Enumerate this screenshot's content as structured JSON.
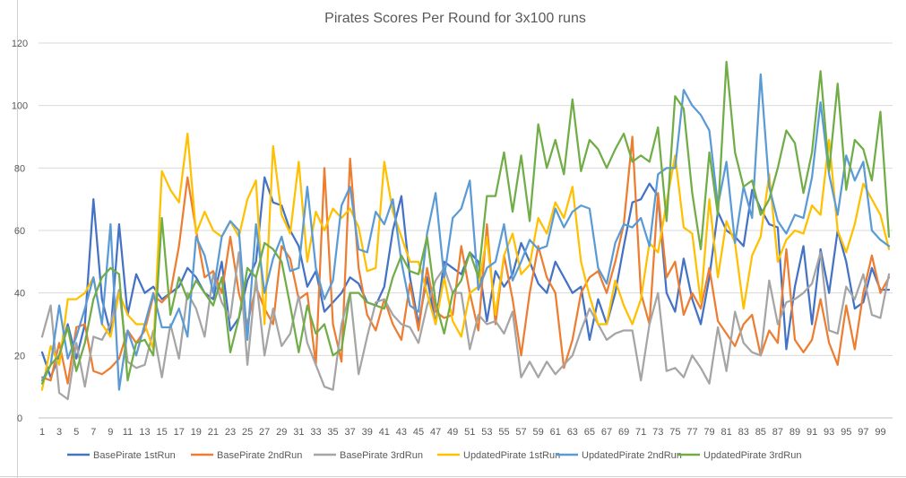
{
  "chart_data": {
    "type": "line",
    "title": "Pirates Scores Per Round for 3x100 runs",
    "xlabel": "",
    "ylabel": "",
    "ylim": [
      0,
      120
    ],
    "yticks": [
      0,
      20,
      40,
      60,
      80,
      100,
      120
    ],
    "x": [
      1,
      2,
      3,
      4,
      5,
      6,
      7,
      8,
      9,
      10,
      11,
      12,
      13,
      14,
      15,
      16,
      17,
      18,
      19,
      20,
      21,
      22,
      23,
      24,
      25,
      26,
      27,
      28,
      29,
      30,
      31,
      32,
      33,
      34,
      35,
      36,
      37,
      38,
      39,
      40,
      41,
      42,
      43,
      44,
      45,
      46,
      47,
      48,
      49,
      50,
      51,
      52,
      53,
      54,
      55,
      56,
      57,
      58,
      59,
      60,
      61,
      62,
      63,
      64,
      65,
      66,
      67,
      68,
      69,
      70,
      71,
      72,
      73,
      74,
      75,
      76,
      77,
      78,
      79,
      80,
      81,
      82,
      83,
      84,
      85,
      86,
      87,
      88,
      89,
      90,
      91,
      92,
      93,
      94,
      95,
      96,
      97,
      98,
      99,
      100
    ],
    "xtick_labels": [
      1,
      3,
      5,
      7,
      9,
      11,
      13,
      15,
      17,
      19,
      21,
      23,
      25,
      27,
      29,
      31,
      33,
      35,
      37,
      39,
      41,
      43,
      45,
      47,
      49,
      51,
      53,
      55,
      57,
      59,
      61,
      63,
      65,
      67,
      69,
      71,
      73,
      75,
      77,
      79,
      81,
      83,
      85,
      87,
      89,
      91,
      93,
      95,
      97,
      99
    ],
    "grid": true,
    "legend_position": "bottom",
    "series": [
      {
        "name": "BasePirate 1stRun",
        "color": "#4472c4",
        "values": [
          21,
          13,
          20,
          30,
          19,
          30,
          70,
          38,
          27,
          62,
          33,
          46,
          40,
          42,
          38,
          40,
          42,
          48,
          45,
          40,
          38,
          50,
          28,
          32,
          44,
          50,
          77,
          69,
          68,
          60,
          55,
          42,
          47,
          34,
          37,
          40,
          45,
          43,
          37,
          36,
          42,
          60,
          71,
          45,
          30,
          45,
          30,
          50,
          48,
          46,
          53,
          50,
          31,
          47,
          42,
          46,
          56,
          50,
          43,
          40,
          50,
          45,
          40,
          42,
          25,
          38,
          30,
          40,
          55,
          69,
          70,
          75,
          71,
          40,
          34,
          51,
          38,
          30,
          45,
          66,
          60,
          58,
          55,
          73,
          67,
          62,
          61,
          22,
          42,
          55,
          30,
          54,
          40,
          60,
          50,
          35,
          37,
          48,
          41,
          41
        ]
      },
      {
        "name": "BasePirate 2ndRun",
        "color": "#ed7d31",
        "values": [
          13,
          12,
          24,
          11,
          29,
          30,
          15,
          14,
          16,
          19,
          28,
          24,
          28,
          39,
          37,
          40,
          55,
          77,
          60,
          45,
          47,
          40,
          58,
          40,
          30,
          42,
          35,
          30,
          55,
          51,
          38,
          40,
          17,
          80,
          30,
          18,
          83,
          48,
          33,
          28,
          38,
          30,
          25,
          43,
          28,
          48,
          34,
          32,
          33,
          55,
          40,
          28,
          62,
          30,
          52,
          38,
          20,
          40,
          55,
          45,
          40,
          16,
          25,
          40,
          45,
          47,
          40,
          50,
          62,
          90,
          40,
          30,
          72,
          45,
          50,
          33,
          40,
          35,
          48,
          31,
          27,
          23,
          30,
          33,
          20,
          28,
          24,
          54,
          25,
          21,
          25,
          38,
          24,
          17,
          36,
          22,
          40,
          52,
          40,
          45
        ]
      },
      {
        "name": "BasePirate 3rdRun",
        "color": "#a5a5a5",
        "values": [
          26,
          36,
          8,
          6,
          24,
          10,
          26,
          25,
          30,
          41,
          18,
          16,
          17,
          28,
          13,
          30,
          19,
          40,
          35,
          26,
          46,
          37,
          32,
          53,
          17,
          45,
          20,
          35,
          23,
          27,
          39,
          24,
          17,
          10,
          9,
          30,
          40,
          14,
          26,
          37,
          38,
          33,
          30,
          29,
          24,
          36,
          44,
          48,
          40,
          40,
          22,
          33,
          30,
          31,
          27,
          34,
          13,
          18,
          13,
          18,
          14,
          17,
          20,
          28,
          35,
          30,
          25,
          27,
          28,
          28,
          12,
          30,
          40,
          15,
          16,
          13,
          20,
          16,
          11,
          29,
          15,
          34,
          24,
          21,
          20,
          44,
          30,
          37,
          38,
          40,
          43,
          53,
          28,
          27,
          42,
          38,
          46,
          33,
          32,
          46
        ]
      },
      {
        "name": "UpdatedPirate 1stRun",
        "color": "#ffc000",
        "values": [
          9,
          23,
          17,
          38,
          38,
          40,
          45,
          30,
          26,
          40,
          33,
          30,
          30,
          22,
          79,
          73,
          69,
          91,
          59,
          66,
          60,
          58,
          63,
          58,
          70,
          76,
          30,
          87,
          65,
          59,
          82,
          50,
          66,
          60,
          67,
          64,
          67,
          61,
          47,
          48,
          82,
          66,
          58,
          50,
          50,
          40,
          30,
          45,
          31,
          26,
          40,
          42,
          58,
          33,
          52,
          59,
          46,
          49,
          64,
          59,
          69,
          64,
          74,
          50,
          39,
          30,
          30,
          44,
          36,
          30,
          38,
          56,
          53,
          69,
          84,
          61,
          59,
          37,
          70,
          45,
          63,
          56,
          35,
          52,
          58,
          78,
          50,
          57,
          60,
          59,
          68,
          65,
          89,
          60,
          53,
          62,
          75,
          70,
          65,
          54
        ]
      },
      {
        "name": "UpdatedPirate 2ndRun",
        "color": "#5b9bd5",
        "values": [
          12,
          17,
          36,
          19,
          26,
          35,
          45,
          30,
          62,
          9,
          28,
          20,
          30,
          40,
          29,
          29,
          35,
          26,
          58,
          52,
          40,
          58,
          63,
          60,
          25,
          62,
          40,
          51,
          58,
          47,
          48,
          74,
          48,
          38,
          44,
          68,
          74,
          54,
          53,
          66,
          62,
          70,
          50,
          36,
          34,
          59,
          72,
          45,
          64,
          67,
          76,
          41,
          48,
          50,
          62,
          44,
          50,
          57,
          54,
          55,
          67,
          61,
          66,
          68,
          67,
          48,
          43,
          56,
          62,
          61,
          64,
          55,
          78,
          80,
          80,
          105,
          100,
          97,
          92,
          68,
          82,
          56,
          74,
          64,
          110,
          74,
          63,
          59,
          65,
          64,
          77,
          101,
          78,
          65,
          84,
          76,
          82,
          60,
          57,
          55
        ]
      },
      {
        "name": "UpdatedPirate 3rdRun",
        "color": "#70ad47",
        "values": [
          11,
          17,
          20,
          29,
          15,
          24,
          38,
          45,
          48,
          46,
          12,
          24,
          25,
          20,
          64,
          33,
          45,
          38,
          44,
          40,
          36,
          45,
          21,
          32,
          48,
          45,
          56,
          54,
          50,
          36,
          21,
          36,
          27,
          30,
          20,
          22,
          40,
          40,
          37,
          36,
          35,
          45,
          52,
          47,
          46,
          58,
          37,
          27,
          40,
          44,
          53,
          45,
          71,
          71,
          85,
          66,
          84,
          63,
          94,
          80,
          89,
          78,
          102,
          79,
          89,
          86,
          80,
          86,
          91,
          82,
          84,
          82,
          93,
          63,
          103,
          99,
          72,
          54,
          85,
          65,
          114,
          85,
          74,
          76,
          65,
          70,
          80,
          92,
          88,
          72,
          85,
          111,
          79,
          107,
          73,
          89,
          86,
          76,
          98,
          58
        ]
      }
    ]
  }
}
